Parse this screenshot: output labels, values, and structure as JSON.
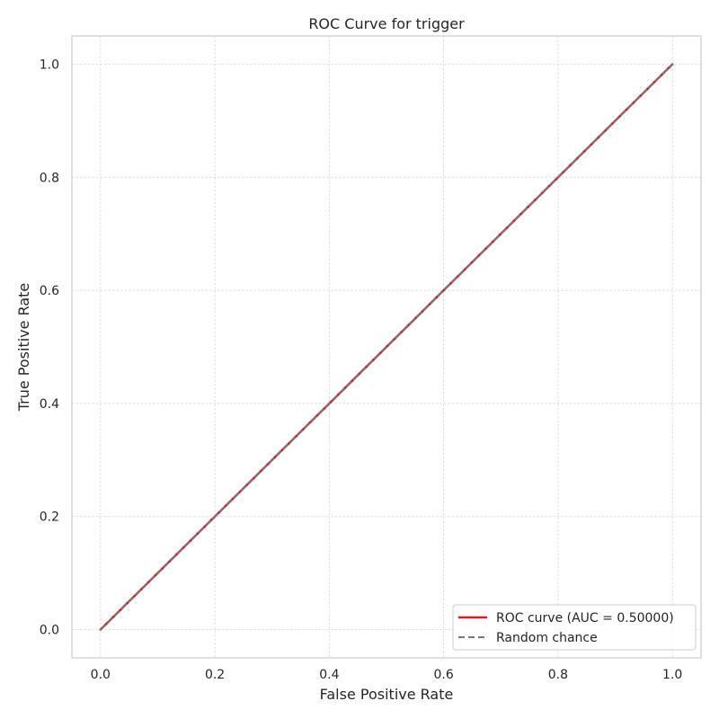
{
  "chart_data": {
    "type": "line",
    "title": "ROC Curve for trigger",
    "xlabel": "False Positive Rate",
    "ylabel": "True Positive Rate",
    "xlim": [
      -0.05,
      1.05
    ],
    "ylim": [
      -0.05,
      1.05
    ],
    "x_ticks": [
      0.0,
      0.2,
      0.4,
      0.6,
      0.8,
      1.0
    ],
    "y_ticks": [
      0.0,
      0.2,
      0.4,
      0.6,
      0.8,
      1.0
    ],
    "x_tick_labels": [
      "0.0",
      "0.2",
      "0.4",
      "0.6",
      "0.8",
      "1.0"
    ],
    "y_tick_labels": [
      "0.0",
      "0.2",
      "0.4",
      "0.6",
      "0.8",
      "1.0"
    ],
    "grid": true,
    "legend_position": "bottom-right",
    "series": [
      {
        "name": "ROC curve (AUC = 0.50000)",
        "x": [
          0.0,
          1.0
        ],
        "y": [
          0.0,
          1.0
        ],
        "color": "#e8141c",
        "style": "solid"
      },
      {
        "name": "Random chance",
        "x": [
          0.0,
          1.0
        ],
        "y": [
          0.0,
          1.0
        ],
        "color": "#777777",
        "style": "dashed"
      }
    ]
  }
}
